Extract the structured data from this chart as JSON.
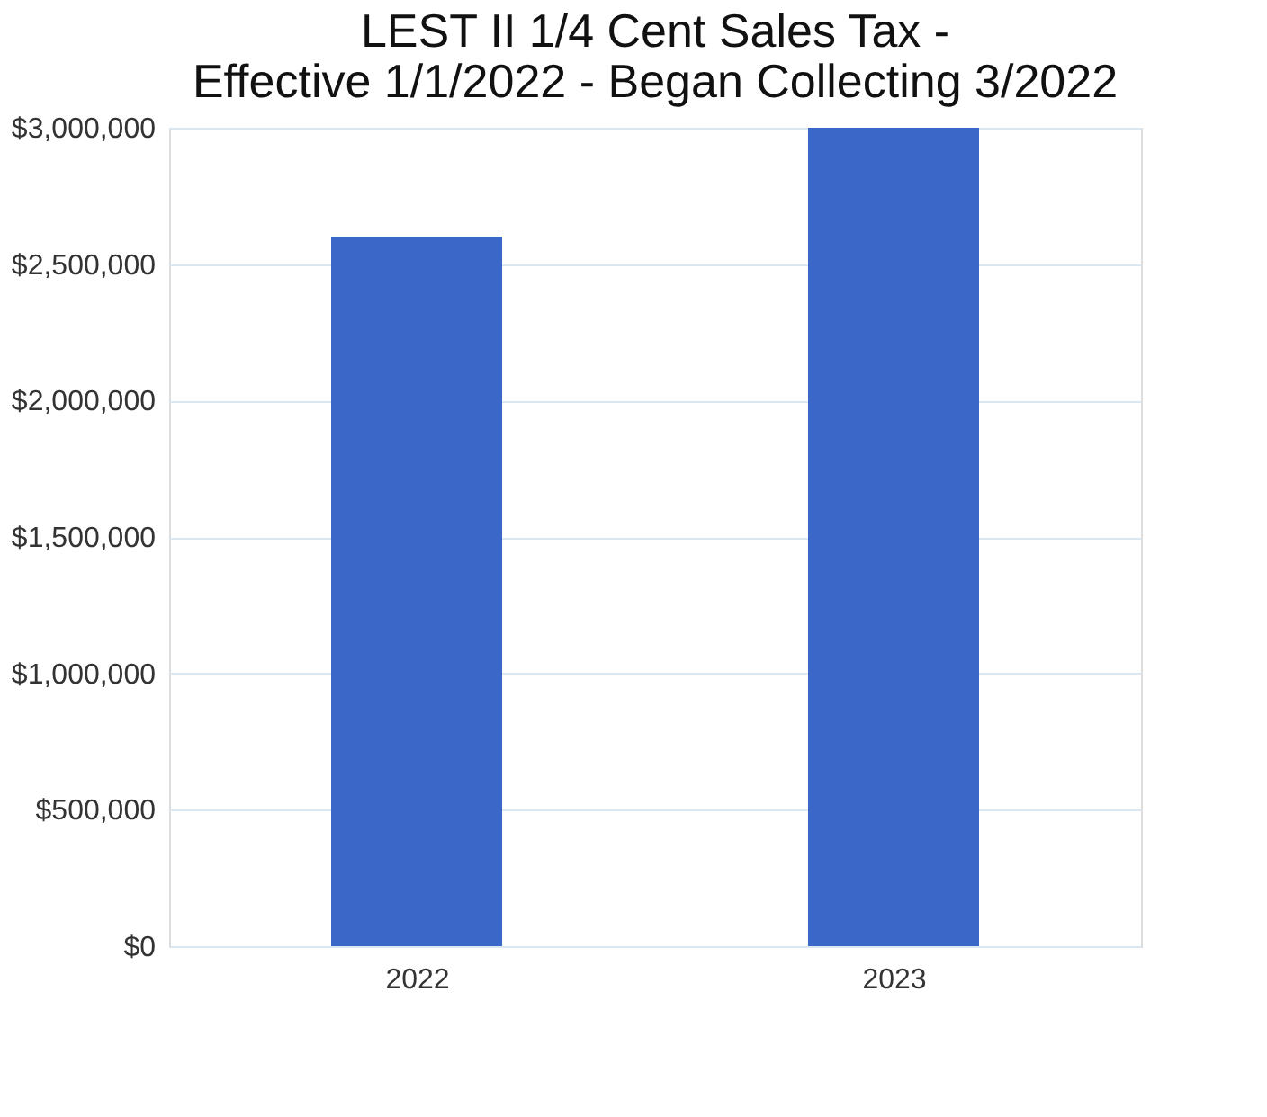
{
  "chart_data": {
    "type": "bar",
    "title": "LEST II 1/4 Cent Sales Tax - Effective 1/1/2022 - Began Collecting 3/2022",
    "categories": [
      "2022",
      "2023"
    ],
    "values": [
      2600000,
      3000000
    ],
    "color": "#3b68c8",
    "ylim": [
      0,
      3000000
    ],
    "yticks": [
      {
        "value": 0,
        "label": "$0"
      },
      {
        "value": 500000,
        "label": "$500,000"
      },
      {
        "value": 1000000,
        "label": "$1,000,000"
      },
      {
        "value": 1500000,
        "label": "$1,500,000"
      },
      {
        "value": 2000000,
        "label": "$2,000,000"
      },
      {
        "value": 2500000,
        "label": "$2,500,000"
      },
      {
        "value": 3000000,
        "label": "$3,000,000"
      }
    ],
    "grid": "y"
  }
}
